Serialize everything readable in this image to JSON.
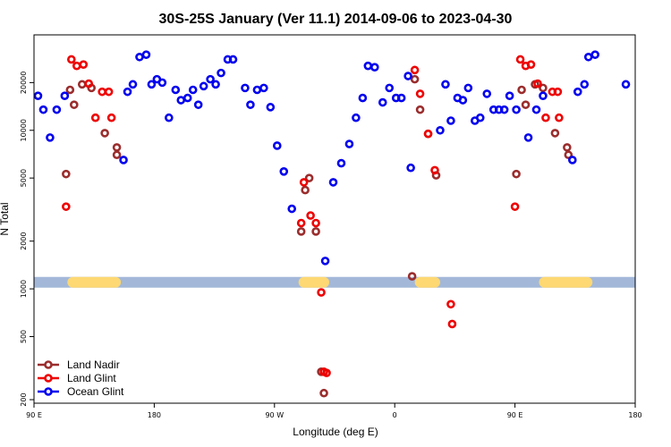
{
  "chart_data": {
    "type": "scatter",
    "title": "30S-25S January (Ver 11.1)   2014-09-06 to 2023-04-30",
    "xlabel": "Longitude (deg E)",
    "ylabel": "N Total",
    "xlim": [
      90,
      540
    ],
    "ylim_log": [
      190,
      40000
    ],
    "x_ticks": [
      {
        "value": 90,
        "label": "90 E"
      },
      {
        "value": 180,
        "label": "180"
      },
      {
        "value": 270,
        "label": "90 W"
      },
      {
        "value": 360,
        "label": "0"
      },
      {
        "value": 450,
        "label": "90 E"
      },
      {
        "value": 540,
        "label": "180"
      }
    ],
    "y_ticks": [
      {
        "value": 200,
        "label": "200"
      },
      {
        "value": 500,
        "label": "500"
      },
      {
        "value": 1000,
        "label": "1000"
      },
      {
        "value": 2000,
        "label": "2000"
      },
      {
        "value": 5000,
        "label": "5000"
      },
      {
        "value": 10000,
        "label": "10000"
      },
      {
        "value": 20000,
        "label": "20000"
      }
    ],
    "band": {
      "y": 1100,
      "ocean_color": "#a3b8d9",
      "land_color": "#fdd873",
      "land_segments": [
        [
          115,
          155
        ],
        [
          288,
          311
        ],
        [
          375,
          394
        ],
        [
          468,
          508
        ]
      ]
    },
    "legend": {
      "position": "bottom-left",
      "entries": [
        {
          "label": "Land Nadir",
          "color": "#9b2d2d"
        },
        {
          "label": "Land Glint",
          "color": "#ee0000"
        },
        {
          "label": "Ocean Glint",
          "color": "#0000ee"
        }
      ]
    },
    "series": [
      {
        "name": "Land Nadir",
        "color": "#9b2d2d",
        "points": [
          [
            114,
            5300
          ],
          [
            117,
            18000
          ],
          [
            120,
            14500
          ],
          [
            126,
            19500
          ],
          [
            133,
            18500
          ],
          [
            143,
            9600
          ],
          [
            152,
            7800
          ],
          [
            152,
            7000
          ],
          [
            290,
            2300
          ],
          [
            293,
            4200
          ],
          [
            296,
            5000
          ],
          [
            301,
            2300
          ],
          [
            305,
            300
          ],
          [
            307,
            220
          ],
          [
            373,
            1200
          ],
          [
            375,
            21000
          ],
          [
            379,
            13500
          ],
          [
            385,
            9500
          ],
          [
            391,
            5200
          ],
          [
            451,
            5300
          ],
          [
            455,
            18000
          ],
          [
            458,
            14500
          ],
          [
            465,
            19500
          ],
          [
            471,
            18500
          ],
          [
            480,
            9600
          ],
          [
            489,
            7800
          ],
          [
            490,
            7000
          ]
        ]
      },
      {
        "name": "Land Glint",
        "color": "#ee0000",
        "points": [
          [
            114,
            3300
          ],
          [
            118,
            28000
          ],
          [
            122,
            25500
          ],
          [
            127,
            26000
          ],
          [
            131,
            19700
          ],
          [
            136,
            12000
          ],
          [
            141,
            17500
          ],
          [
            146,
            17500
          ],
          [
            148,
            12000
          ],
          [
            290,
            2600
          ],
          [
            292,
            4700
          ],
          [
            297,
            2900
          ],
          [
            301,
            2600
          ],
          [
            305,
            950
          ],
          [
            307,
            300
          ],
          [
            309,
            295
          ],
          [
            375,
            24000
          ],
          [
            379,
            17000
          ],
          [
            385,
            9500
          ],
          [
            390,
            5600
          ],
          [
            402,
            800
          ],
          [
            403,
            600
          ],
          [
            450,
            3300
          ],
          [
            454,
            28000
          ],
          [
            458,
            25500
          ],
          [
            462,
            26000
          ],
          [
            467,
            19700
          ],
          [
            473,
            12000
          ],
          [
            478,
            17500
          ],
          [
            482,
            17500
          ],
          [
            483,
            12000
          ]
        ]
      },
      {
        "name": "Ocean Glint",
        "color": "#0000ee",
        "points": [
          [
            93,
            16500
          ],
          [
            97,
            13500
          ],
          [
            102,
            9000
          ],
          [
            107,
            13500
          ],
          [
            113,
            16500
          ],
          [
            157,
            6500
          ],
          [
            160,
            17500
          ],
          [
            164,
            19500
          ],
          [
            169,
            29000
          ],
          [
            174,
            30000
          ],
          [
            178,
            19500
          ],
          [
            182,
            21000
          ],
          [
            186,
            20000
          ],
          [
            191,
            12000
          ],
          [
            196,
            18000
          ],
          [
            200,
            15500
          ],
          [
            205,
            16000
          ],
          [
            209,
            18000
          ],
          [
            213,
            14500
          ],
          [
            217,
            19000
          ],
          [
            222,
            21000
          ],
          [
            226,
            19500
          ],
          [
            230,
            23000
          ],
          [
            235,
            28000
          ],
          [
            239,
            28000
          ],
          [
            248,
            18500
          ],
          [
            252,
            14500
          ],
          [
            257,
            18000
          ],
          [
            262,
            18500
          ],
          [
            267,
            14000
          ],
          [
            272,
            8000
          ],
          [
            277,
            5500
          ],
          [
            283,
            3200
          ],
          [
            308,
            1500
          ],
          [
            314,
            4700
          ],
          [
            320,
            6200
          ],
          [
            326,
            8200
          ],
          [
            331,
            12000
          ],
          [
            336,
            16000
          ],
          [
            340,
            25500
          ],
          [
            345,
            25000
          ],
          [
            351,
            15000
          ],
          [
            356,
            18500
          ],
          [
            361,
            16000
          ],
          [
            365,
            16000
          ],
          [
            370,
            22000
          ],
          [
            372,
            5800
          ],
          [
            394,
            10000
          ],
          [
            398,
            19500
          ],
          [
            402,
            11500
          ],
          [
            407,
            16000
          ],
          [
            411,
            15500
          ],
          [
            415,
            18500
          ],
          [
            420,
            11500
          ],
          [
            424,
            12000
          ],
          [
            429,
            17000
          ],
          [
            434,
            13500
          ],
          [
            438,
            13500
          ],
          [
            442,
            13500
          ],
          [
            446,
            16500
          ],
          [
            451,
            13500
          ],
          [
            460,
            9000
          ],
          [
            466,
            13500
          ],
          [
            471,
            16500
          ],
          [
            493,
            6500
          ],
          [
            497,
            17500
          ],
          [
            502,
            19500
          ],
          [
            505,
            29000
          ],
          [
            510,
            30000
          ],
          [
            533,
            19500
          ]
        ]
      }
    ]
  }
}
